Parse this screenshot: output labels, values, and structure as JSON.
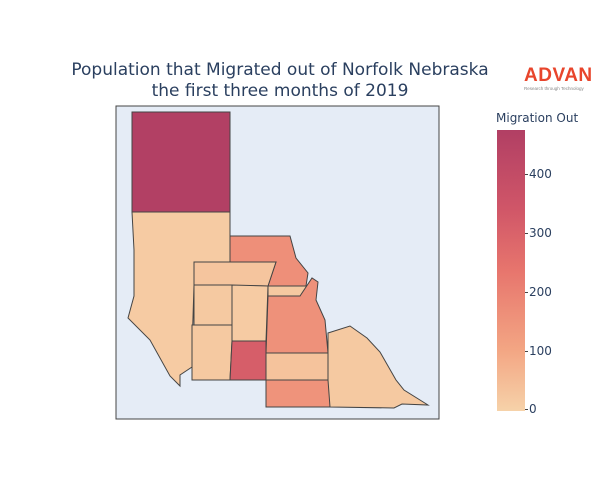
{
  "title_line1": "Population that Migrated out of Norfolk Nebraska",
  "title_line2": "the first three months of 2019",
  "logo": {
    "word": "ADVAN",
    "tagline": "Research through Technology",
    "color": "#e8452c"
  },
  "colorbar": {
    "title": "Migration Out",
    "ticks": [
      "0",
      "100",
      "200",
      "300",
      "400"
    ],
    "colors": [
      "#f6d2a9",
      "#f3a583",
      "#e7756d",
      "#d05668",
      "#b13f64"
    ]
  },
  "map": {
    "background": "#e5ecf6",
    "border_color": "#444444",
    "region_values": {
      "north-large": 475,
      "west-large": 20,
      "northeast": 175,
      "central-top": 35,
      "central-west": 25,
      "central-mid": 20,
      "central-east-narrow": 25,
      "east-middle": 170,
      "southwest": 25,
      "south-dark": 330,
      "south-mid": 40,
      "south-bottom": 165,
      "southeast": 25
    }
  }
}
